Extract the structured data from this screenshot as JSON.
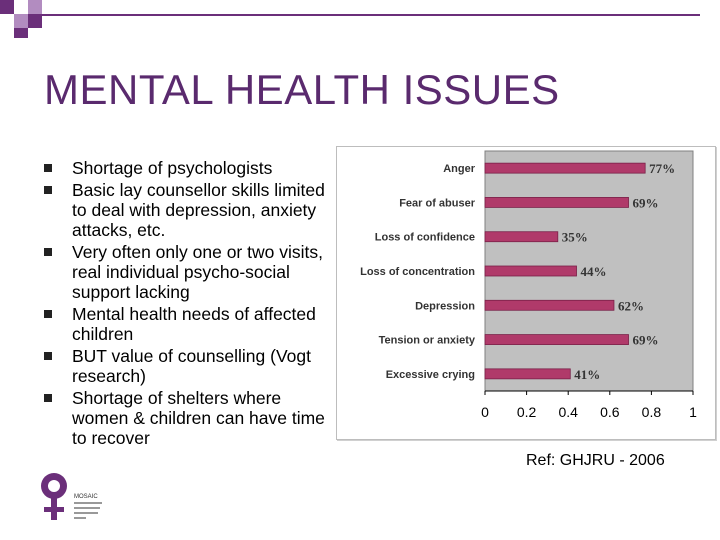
{
  "slide": {
    "title": "MENTAL HEALTH ISSUES",
    "bullets": [
      "Shortage of psychologists",
      "Basic lay counsellor skills limited to deal with depression, anxiety attacks, etc.",
      "Very often only one or two visits, real individual psycho-social support lacking",
      "Mental health needs of affected children",
      "BUT value of counselling (Vogt research)",
      "Shortage of shelters where women & children can have time to recover"
    ],
    "reference": "Ref: GHJRU - 2006",
    "logo_text": "MOSAIC"
  },
  "colors": {
    "title": "#5a2a6e",
    "accent": "#6b2f7a",
    "bar": "#b03a6a",
    "plot_bg": "#c0c0c0"
  },
  "chart_data": {
    "type": "bar",
    "orientation": "horizontal",
    "categories": [
      "Anger",
      "Fear of abuser",
      "Loss of confidence",
      "Loss of concentration",
      "Depression",
      "Tension or anxiety",
      "Excessive crying"
    ],
    "values": [
      0.77,
      0.69,
      0.35,
      0.44,
      0.62,
      0.69,
      0.41
    ],
    "data_labels": [
      "77%",
      "69%",
      "35%",
      "44%",
      "62%",
      "69%",
      "41%"
    ],
    "xlim": [
      0,
      1
    ],
    "xticks": [
      "0",
      "0.2",
      "0.4",
      "0.6",
      "0.8",
      "1"
    ],
    "grid": false,
    "legend": "none"
  }
}
